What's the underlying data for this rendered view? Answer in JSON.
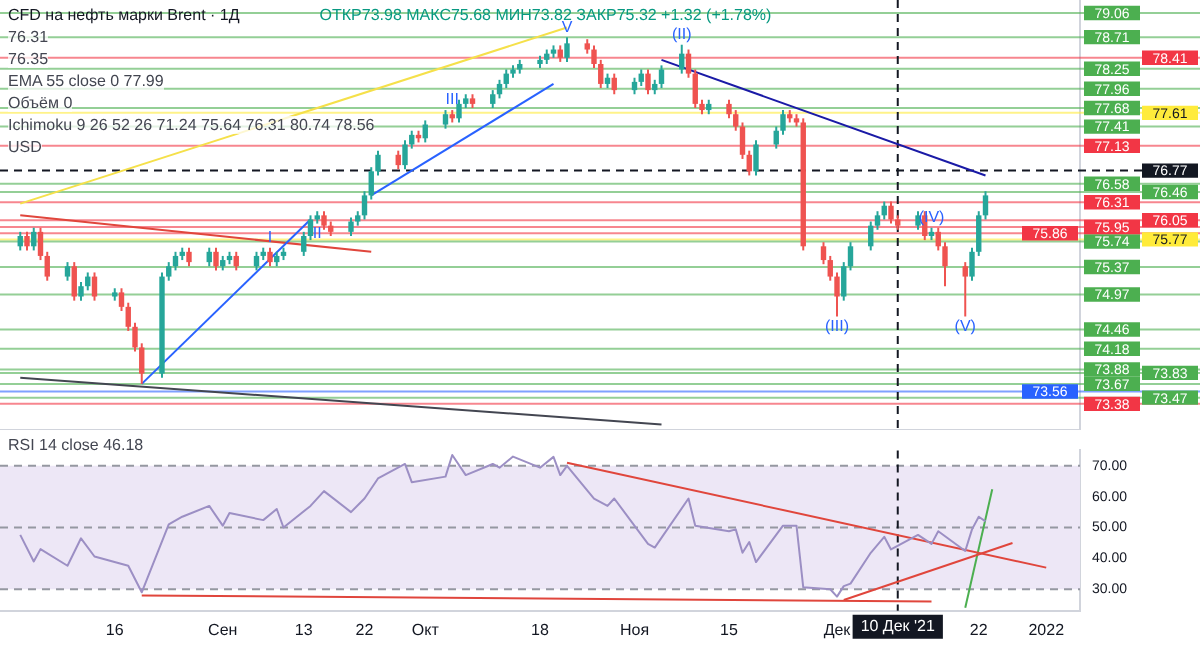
{
  "chart_data": [
    {
      "type": "candlestick",
      "title": "CFD на нефть марки Brent · 1Д",
      "subtitle": "ОТКР73.98 МАКС75.68 МИН73.82 ЗАКР75.32 +1.32 (+1.78%)",
      "annotations": [
        "76.31",
        "76.35",
        "EMA 55 close 0  77.99",
        "Объём  0",
        "Ichimoku 9 26 52 26  71.24  75.64  76.31  80.74  78.56",
        "USD",
        {
          "text": "I",
          "x": "2021-09-08",
          "y": 75.65
        },
        {
          "text": "II",
          "x": "2021-09-15",
          "y": 76.0
        },
        {
          "text": "III",
          "x": "2021-10-05",
          "y": 77.65
        },
        {
          "text": "V",
          "x": "2021-10-22",
          "y": 78.71
        },
        {
          "text": "(II)",
          "x": "2021-11-08",
          "y": 78.6
        },
        {
          "text": "(III)",
          "x": "2021-12-01",
          "y": 74.65
        },
        {
          "text": "(IV)",
          "x": "2021-12-15",
          "y": 75.94
        },
        {
          "text": "(V)",
          "x": "2021-12-20",
          "y": 74.65
        }
      ],
      "x": [
        "2021-08-02",
        "2021-08-03",
        "2021-08-04",
        "2021-08-05",
        "2021-08-06",
        "2021-08-09",
        "2021-08-10",
        "2021-08-11",
        "2021-08-12",
        "2021-08-13",
        "2021-08-16",
        "2021-08-17",
        "2021-08-18",
        "2021-08-19",
        "2021-08-20",
        "2021-08-23",
        "2021-08-24",
        "2021-08-25",
        "2021-08-26",
        "2021-08-27",
        "2021-08-30",
        "2021-08-31",
        "2021-09-01",
        "2021-09-02",
        "2021-09-03",
        "2021-09-06",
        "2021-09-07",
        "2021-09-08",
        "2021-09-09",
        "2021-09-10",
        "2021-09-13",
        "2021-09-14",
        "2021-09-15",
        "2021-09-16",
        "2021-09-17",
        "2021-09-20",
        "2021-09-21",
        "2021-09-22",
        "2021-09-23",
        "2021-09-24",
        "2021-09-27",
        "2021-09-28",
        "2021-09-29",
        "2021-09-30",
        "2021-10-01",
        "2021-10-04",
        "2021-10-05",
        "2021-10-06",
        "2021-10-07",
        "2021-10-08",
        "2021-10-11",
        "2021-10-12",
        "2021-10-13",
        "2021-10-14",
        "2021-10-15",
        "2021-10-18",
        "2021-10-19",
        "2021-10-20",
        "2021-10-21",
        "2021-10-22",
        "2021-10-25",
        "2021-10-26",
        "2021-10-27",
        "2021-10-28",
        "2021-10-29",
        "2021-11-01",
        "2021-11-02",
        "2021-11-03",
        "2021-11-04",
        "2021-11-05",
        "2021-11-08",
        "2021-11-09",
        "2021-11-10",
        "2021-11-11",
        "2021-11-12",
        "2021-11-15",
        "2021-11-16",
        "2021-11-17",
        "2021-11-18",
        "2021-11-19",
        "2021-11-22",
        "2021-11-23",
        "2021-11-24",
        "2021-11-25",
        "2021-11-26",
        "2021-11-29",
        "2021-11-30",
        "2021-12-01",
        "2021-12-02",
        "2021-12-03",
        "2021-12-06",
        "2021-12-07",
        "2021-12-08",
        "2021-12-09",
        "2021-12-10",
        "2021-12-13",
        "2021-12-14",
        "2021-12-15",
        "2021-12-16",
        "2021-12-17",
        "2021-12-20",
        "2021-12-21",
        "2021-12-22",
        "2021-12-23"
      ],
      "ohlc": [
        [
          75.67,
          75.88,
          75.61,
          75.82
        ],
        [
          75.82,
          75.88,
          75.61,
          75.67
        ],
        [
          75.67,
          75.94,
          75.61,
          75.88
        ],
        [
          75.88,
          75.94,
          75.47,
          75.53
        ],
        [
          75.53,
          75.59,
          75.17,
          75.23
        ],
        [
          75.23,
          75.44,
          75.17,
          75.38
        ],
        [
          75.38,
          75.44,
          74.88,
          74.94
        ],
        [
          74.94,
          75.15,
          74.88,
          75.09
        ],
        [
          75.09,
          75.29,
          75.03,
          75.23
        ],
        [
          75.23,
          75.29,
          74.88,
          74.94
        ],
        [
          74.94,
          75.06,
          74.88,
          75.0
        ],
        [
          75.0,
          75.06,
          74.73,
          74.79
        ],
        [
          74.79,
          74.85,
          74.44,
          74.5
        ],
        [
          74.5,
          74.56,
          74.14,
          74.2
        ],
        [
          74.2,
          74.26,
          73.67,
          73.82
        ],
        [
          73.82,
          75.29,
          73.76,
          75.23
        ],
        [
          75.23,
          75.44,
          75.17,
          75.38
        ],
        [
          75.38,
          75.59,
          75.32,
          75.53
        ],
        [
          75.53,
          75.65,
          75.47,
          75.59
        ],
        [
          75.59,
          75.65,
          75.38,
          75.44
        ],
        [
          75.44,
          75.65,
          75.38,
          75.59
        ],
        [
          75.59,
          75.65,
          75.32,
          75.38
        ],
        [
          75.38,
          75.53,
          75.32,
          75.47
        ],
        [
          75.47,
          75.59,
          75.41,
          75.53
        ],
        [
          75.53,
          75.59,
          75.32,
          75.38
        ],
        [
          75.38,
          75.59,
          75.32,
          75.53
        ],
        [
          75.53,
          75.65,
          75.47,
          75.59
        ],
        [
          75.59,
          75.65,
          75.38,
          75.44
        ],
        [
          75.44,
          75.59,
          75.38,
          75.53
        ],
        [
          75.53,
          75.65,
          75.47,
          75.59
        ],
        [
          75.59,
          75.88,
          75.53,
          75.82
        ],
        [
          75.82,
          76.12,
          75.76,
          76.06
        ],
        [
          76.06,
          76.18,
          76.0,
          76.12
        ],
        [
          76.12,
          76.18,
          75.91,
          75.97
        ],
        [
          75.97,
          76.03,
          75.82,
          75.88
        ],
        [
          75.88,
          76.09,
          75.82,
          76.03
        ],
        [
          76.03,
          76.18,
          75.97,
          76.12
        ],
        [
          76.12,
          76.47,
          76.06,
          76.41
        ],
        [
          76.41,
          76.82,
          76.35,
          76.76
        ],
        [
          76.76,
          77.06,
          76.7,
          77.0
        ],
        [
          77.0,
          77.06,
          76.79,
          76.85
        ],
        [
          76.85,
          77.21,
          76.79,
          77.15
        ],
        [
          77.15,
          77.35,
          77.09,
          77.29
        ],
        [
          77.29,
          77.35,
          77.18,
          77.24
        ],
        [
          77.24,
          77.5,
          77.18,
          77.44
        ],
        [
          77.44,
          77.65,
          77.38,
          77.59
        ],
        [
          77.59,
          77.65,
          77.47,
          77.53
        ],
        [
          77.53,
          77.8,
          77.47,
          77.74
        ],
        [
          77.74,
          77.88,
          77.68,
          77.82
        ],
        [
          77.82,
          77.88,
          77.68,
          77.74
        ],
        [
          77.74,
          77.94,
          77.68,
          77.88
        ],
        [
          77.88,
          78.09,
          77.82,
          78.03
        ],
        [
          78.03,
          78.24,
          77.97,
          78.18
        ],
        [
          78.18,
          78.3,
          78.12,
          78.24
        ],
        [
          78.24,
          78.38,
          78.18,
          78.32
        ],
        [
          78.32,
          78.44,
          78.26,
          78.38
        ],
        [
          78.38,
          78.53,
          78.32,
          78.47
        ],
        [
          78.47,
          78.59,
          78.41,
          78.53
        ],
        [
          78.53,
          78.59,
          78.35,
          78.41
        ],
        [
          78.41,
          78.71,
          78.35,
          78.62
        ],
        [
          78.62,
          78.68,
          78.47,
          78.53
        ],
        [
          78.53,
          78.59,
          78.26,
          78.32
        ],
        [
          78.32,
          78.38,
          77.97,
          78.03
        ],
        [
          78.03,
          78.18,
          77.97,
          78.12
        ],
        [
          78.12,
          78.18,
          77.88,
          77.94
        ],
        [
          77.94,
          78.12,
          77.88,
          78.06
        ],
        [
          78.06,
          78.24,
          78.0,
          78.18
        ],
        [
          78.18,
          78.24,
          77.88,
          77.94
        ],
        [
          77.94,
          78.09,
          77.88,
          78.03
        ],
        [
          78.03,
          78.3,
          77.97,
          78.24
        ],
        [
          78.24,
          78.6,
          78.18,
          78.47
        ],
        [
          78.47,
          78.53,
          78.12,
          78.18
        ],
        [
          78.18,
          78.24,
          77.68,
          77.74
        ],
        [
          77.74,
          77.8,
          77.59,
          77.65
        ],
        [
          77.65,
          77.8,
          77.59,
          77.74
        ],
        [
          77.74,
          77.8,
          77.53,
          77.59
        ],
        [
          77.59,
          77.65,
          77.35,
          77.41
        ],
        [
          77.41,
          77.47,
          76.94,
          77.0
        ],
        [
          77.0,
          77.06,
          76.7,
          76.76
        ],
        [
          76.76,
          77.21,
          76.7,
          77.15
        ],
        [
          77.15,
          77.41,
          77.09,
          77.35
        ],
        [
          77.35,
          77.65,
          77.29,
          77.59
        ],
        [
          77.59,
          77.65,
          77.47,
          77.53
        ],
        [
          77.53,
          77.59,
          77.41,
          77.47
        ],
        [
          77.47,
          77.53,
          75.61,
          75.67
        ],
        [
          75.67,
          75.73,
          75.41,
          75.47
        ],
        [
          75.47,
          75.53,
          75.17,
          75.23
        ],
        [
          75.23,
          75.29,
          74.65,
          74.94
        ],
        [
          74.94,
          75.44,
          74.88,
          75.38
        ],
        [
          75.38,
          75.73,
          75.32,
          75.67
        ],
        [
          75.67,
          76.03,
          75.61,
          75.97
        ],
        [
          75.97,
          76.18,
          75.91,
          76.12
        ],
        [
          76.12,
          76.32,
          76.06,
          76.26
        ],
        [
          76.26,
          76.32,
          76.0,
          76.06
        ],
        [
          76.06,
          76.12,
          75.91,
          75.97
        ],
        [
          75.97,
          76.18,
          75.91,
          76.12
        ],
        [
          76.12,
          76.18,
          75.76,
          75.82
        ],
        [
          75.82,
          75.94,
          75.76,
          75.88
        ],
        [
          75.88,
          75.94,
          75.61,
          75.67
        ],
        [
          75.67,
          75.73,
          75.09,
          75.38
        ],
        [
          75.38,
          75.44,
          74.65,
          75.23
        ],
        [
          75.23,
          75.65,
          75.17,
          75.59
        ],
        [
          75.59,
          76.18,
          75.53,
          76.12
        ],
        [
          76.12,
          76.47,
          76.06,
          76.41
        ]
      ],
      "series": [
        {
          "type": "line",
          "color": "#f5e04a",
          "x": [
            "2021-08-02",
            "2021-10-22"
          ],
          "values": [
            76.29,
            78.85
          ]
        },
        {
          "type": "line",
          "color": "#1a1aa6",
          "x": [
            "2021-11-05",
            "2021-12-23"
          ],
          "values": [
            78.38,
            76.7
          ]
        },
        {
          "type": "line",
          "color": "#2962ff",
          "x": [
            "2021-08-20",
            "2021-09-14"
          ],
          "values": [
            73.67,
            76.06
          ]
        },
        {
          "type": "line",
          "color": "#2962ff",
          "x": [
            "2021-09-23",
            "2021-10-20"
          ],
          "values": [
            76.41,
            78.03
          ]
        },
        {
          "type": "line",
          "color": "#434651",
          "x": [
            "2021-08-02",
            "2021-11-05"
          ],
          "values": [
            73.76,
            73.08
          ]
        },
        {
          "type": "line",
          "color": "#e0463c",
          "x": [
            "2021-08-02",
            "2021-09-23"
          ],
          "values": [
            76.12,
            75.59
          ]
        }
      ],
      "xlim": [
        "2021-07-30",
        "2022-01-06"
      ],
      "ylim": [
        73.0,
        79.25
      ],
      "ref_lines": [
        {
          "axis": "y",
          "value": 79.06,
          "label": "79.06",
          "color": "#4caf50"
        },
        {
          "axis": "y",
          "value": 78.71,
          "label": "78.71",
          "color": "#4caf50"
        },
        {
          "axis": "y",
          "value": 78.41,
          "label": "78.41",
          "color": "#f23645"
        },
        {
          "axis": "y",
          "value": 78.25,
          "label": "78.25",
          "color": "#4caf50"
        },
        {
          "axis": "y",
          "value": 77.96,
          "label": "77.96",
          "color": "#4caf50"
        },
        {
          "axis": "y",
          "value": 77.68,
          "label": "77.68",
          "color": "#4caf50"
        },
        {
          "axis": "y",
          "value": 77.61,
          "label": "77.61",
          "color": "#ffeb3b"
        },
        {
          "axis": "y",
          "value": 77.41,
          "label": "77.41",
          "color": "#4caf50"
        },
        {
          "axis": "y",
          "value": 77.13,
          "label": "77.13",
          "color": "#f23645"
        },
        {
          "axis": "y",
          "value": 76.77,
          "label": "76.77",
          "color": "#131722",
          "line_style": "dashed"
        },
        {
          "axis": "y",
          "value": 76.58,
          "label": "76.58",
          "color": "#4caf50"
        },
        {
          "axis": "y",
          "value": 76.46,
          "label": "76.46",
          "color": "#4caf50"
        },
        {
          "axis": "y",
          "value": 76.31,
          "label": "76.31",
          "color": "#f23645"
        },
        {
          "axis": "y",
          "value": 76.05,
          "label": "76.05",
          "color": "#f23645"
        },
        {
          "axis": "y",
          "value": 75.95,
          "label": "75.95",
          "color": "#f23645"
        },
        {
          "axis": "y",
          "value": 75.86,
          "label": "75.86",
          "color": "#f23645"
        },
        {
          "axis": "y",
          "value": 75.77,
          "label": "75.77",
          "color": "#ffeb3b"
        },
        {
          "axis": "y",
          "value": 75.74,
          "label": "75.74",
          "color": "#4caf50"
        },
        {
          "axis": "y",
          "value": 75.37,
          "label": "75.37",
          "color": "#4caf50"
        },
        {
          "axis": "y",
          "value": 74.97,
          "label": "74.97",
          "color": "#4caf50"
        },
        {
          "axis": "y",
          "value": 74.46,
          "label": "74.46",
          "color": "#4caf50"
        },
        {
          "axis": "y",
          "value": 74.18,
          "label": "74.18",
          "color": "#4caf50"
        },
        {
          "axis": "y",
          "value": 73.88,
          "label": "73.88",
          "color": "#4caf50"
        },
        {
          "axis": "y",
          "value": 73.83,
          "label": "73.83",
          "color": "#4caf50"
        },
        {
          "axis": "y",
          "value": 73.67,
          "label": "73.67",
          "color": "#4caf50"
        },
        {
          "axis": "y",
          "value": 73.56,
          "label": "73.56",
          "color": "#2962ff"
        },
        {
          "axis": "y",
          "value": 73.47,
          "label": "73.47",
          "color": "#4caf50"
        },
        {
          "axis": "y",
          "value": 73.38,
          "label": "73.38",
          "color": "#f23645"
        },
        {
          "axis": "x",
          "value": "2021-12-10",
          "label": null,
          "color": "#131722",
          "line_style": "dashed"
        }
      ]
    },
    {
      "type": "line",
      "annotations": [
        "RSI 14 close  46.18"
      ],
      "series": [
        {
          "color": "#9c8fc4",
          "x": [
            "2021-08-02",
            "2021-08-04",
            "2021-08-05",
            "2021-08-09",
            "2021-08-11",
            "2021-08-13",
            "2021-08-18",
            "2021-08-20",
            "2021-08-24",
            "2021-08-26",
            "2021-08-30",
            "2021-09-01",
            "2021-09-02",
            "2021-09-07",
            "2021-09-09",
            "2021-09-10",
            "2021-09-14",
            "2021-09-16",
            "2021-09-20",
            "2021-09-22",
            "2021-09-24",
            "2021-09-28",
            "2021-09-29",
            "2021-10-04",
            "2021-10-05",
            "2021-10-07",
            "2021-10-11",
            "2021-10-12",
            "2021-10-14",
            "2021-10-18",
            "2021-10-20",
            "2021-10-21",
            "2021-10-22",
            "2021-10-26",
            "2021-10-28",
            "2021-10-29",
            "2021-11-03",
            "2021-11-04",
            "2021-11-09",
            "2021-11-10",
            "2021-11-15",
            "2021-11-16",
            "2021-11-17",
            "2021-11-18",
            "2021-11-19",
            "2021-11-23",
            "2021-11-25",
            "2021-11-26",
            "2021-11-30",
            "2021-12-01",
            "2021-12-02",
            "2021-12-03",
            "2021-12-06",
            "2021-12-08",
            "2021-12-09",
            "2021-12-13",
            "2021-12-15",
            "2021-12-16",
            "2021-12-20",
            "2021-12-21",
            "2021-12-22",
            "2021-12-23"
          ],
          "values": [
            47.6,
            39,
            43,
            37.6,
            46.5,
            40.6,
            37.6,
            29,
            51,
            53.5,
            57,
            50.6,
            54.7,
            52.4,
            56,
            50,
            57,
            61.8,
            55,
            59.4,
            65.9,
            70.6,
            64.7,
            66.5,
            73.5,
            67,
            70.6,
            69.4,
            73,
            69.4,
            72.9,
            67,
            70,
            59.4,
            57,
            59.4,
            44.7,
            43.5,
            59.4,
            50.6,
            48.8,
            49.4,
            41.8,
            45.3,
            38.8,
            50.6,
            50.6,
            30.6,
            30,
            27.6,
            31,
            31.8,
            41.8,
            47,
            42.9,
            47.6,
            44.7,
            48.8,
            42.4,
            49.4,
            53.5,
            52
          ]
        },
        {
          "type": "line",
          "color": "#e0463c",
          "x": [
            "2021-10-22",
            "2022-01-01"
          ],
          "values": [
            71,
            37
          ]
        },
        {
          "type": "line",
          "color": "#e0463c",
          "x": [
            "2021-12-02",
            "2021-12-27"
          ],
          "values": [
            26.5,
            45
          ]
        },
        {
          "type": "line",
          "color": "#e0463c",
          "x": [
            "2021-08-20",
            "2021-12-15"
          ],
          "values": [
            28,
            26
          ]
        },
        {
          "type": "line",
          "color": "#4caf50",
          "x": [
            "2021-12-20",
            "2021-12-24"
          ],
          "values": [
            24,
            62.4
          ]
        }
      ],
      "xlim": [
        "2021-07-30",
        "2022-01-06"
      ],
      "xticks": [
        {
          "value": "2021-08-16",
          "label": "16"
        },
        {
          "value": "2021-09-01",
          "label": "Сен"
        },
        {
          "value": "2021-09-13",
          "label": "13"
        },
        {
          "value": "2021-09-22",
          "label": "22"
        },
        {
          "value": "2021-10-01",
          "label": "Окт"
        },
        {
          "value": "2021-10-18",
          "label": "18"
        },
        {
          "value": "2021-11-01",
          "label": "Ноя"
        },
        {
          "value": "2021-11-15",
          "label": "15"
        },
        {
          "value": "2021-12-01",
          "label": "Дек"
        },
        {
          "value": "2021-12-22",
          "label": "22"
        },
        {
          "value": "2022-01-01",
          "label": "2022"
        }
      ],
      "ylim": [
        23,
        75
      ],
      "yticks": [
        {
          "value": 30,
          "label": "30.00"
        },
        {
          "value": 40,
          "label": "40.00"
        },
        {
          "value": 50,
          "label": "50.00"
        },
        {
          "value": 60,
          "label": "60.00"
        },
        {
          "value": 70,
          "label": "70.00"
        }
      ],
      "bands": [
        {
          "axis": "y",
          "from": 30,
          "to": 70,
          "color": "#ede7f6"
        }
      ],
      "ref_lines": [
        {
          "axis": "y",
          "value": 70,
          "color": "#9598a1",
          "line_style": "dashed"
        },
        {
          "axis": "y",
          "value": 50,
          "color": "#9598a1",
          "line_style": "dashed"
        },
        {
          "axis": "y",
          "value": 30,
          "color": "#9598a1",
          "line_style": "dashed"
        },
        {
          "axis": "x",
          "value": "2021-12-10",
          "label": "10 Дек '21",
          "color": "#131722",
          "line_style": "dashed"
        }
      ]
    }
  ]
}
